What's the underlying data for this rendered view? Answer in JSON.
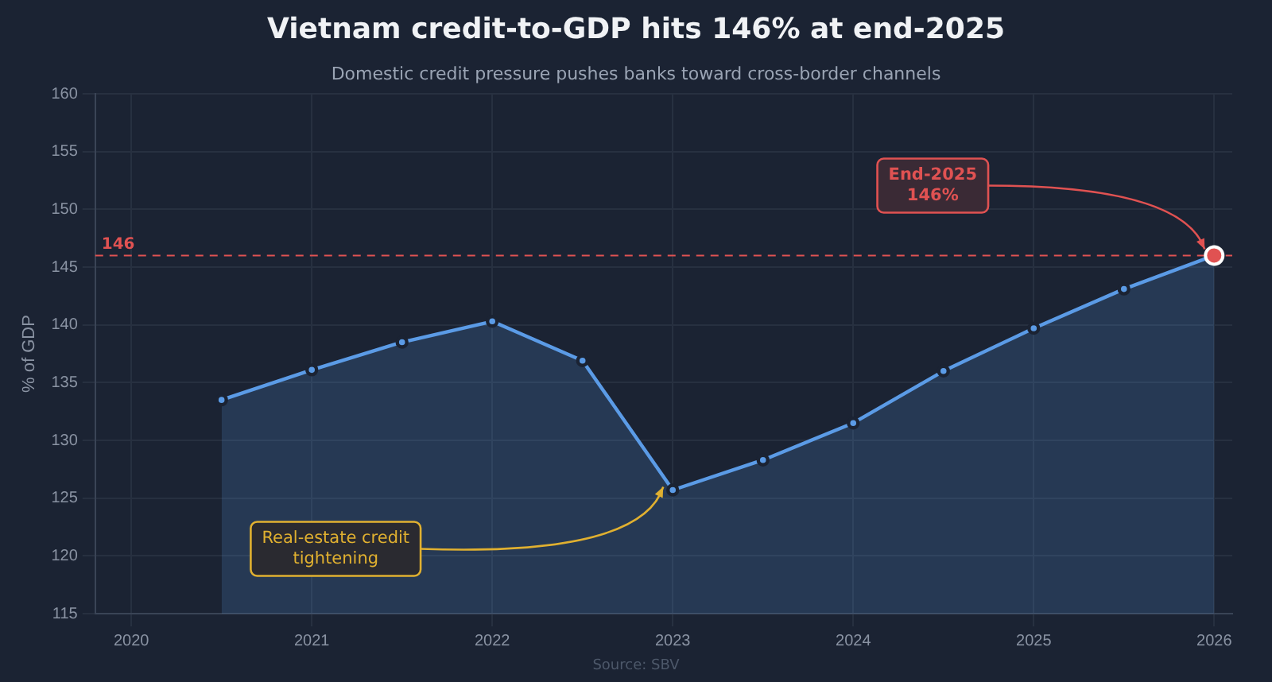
{
  "chart_data": {
    "type": "area",
    "title": "Vietnam credit-to-GDP hits 146% at end-2025",
    "subtitle": "Domestic credit pressure pushes banks toward cross-border channels",
    "ylabel": "% of GDP",
    "x": [
      2020.5,
      2021,
      2021.5,
      2022,
      2022.5,
      2023,
      2023.5,
      2024,
      2024.5,
      2025,
      2025.5,
      2026
    ],
    "series": [
      {
        "color": "#5b9be6",
        "values": [
          133.5,
          136.1,
          138.5,
          140.3,
          136.9,
          125.7,
          128.3,
          131.5,
          136.0,
          139.7,
          143.1,
          146.0
        ]
      }
    ],
    "xlim": [
      2019.8,
      2026.1
    ],
    "xticks": [
      2020,
      2021,
      2022,
      2023,
      2024,
      2025,
      2026
    ],
    "ylim": [
      115,
      160
    ],
    "yticks": [
      115,
      120,
      125,
      130,
      135,
      140,
      145,
      150,
      155,
      160
    ],
    "ref_lines": [
      {
        "axis": "y",
        "value": 146,
        "label": "146",
        "color": "#e05252",
        "line_style": "dashed"
      }
    ],
    "annotations": [
      {
        "text": "End-2025\n146%",
        "x": 2026,
        "y": 146.0
      },
      {
        "text": "Real-estate credit\ntightening",
        "x": 2023,
        "y": 125.7
      },
      "Source: SBV"
    ],
    "grid": true,
    "marker": "circle",
    "line_style": "solid",
    "legend": false
  }
}
